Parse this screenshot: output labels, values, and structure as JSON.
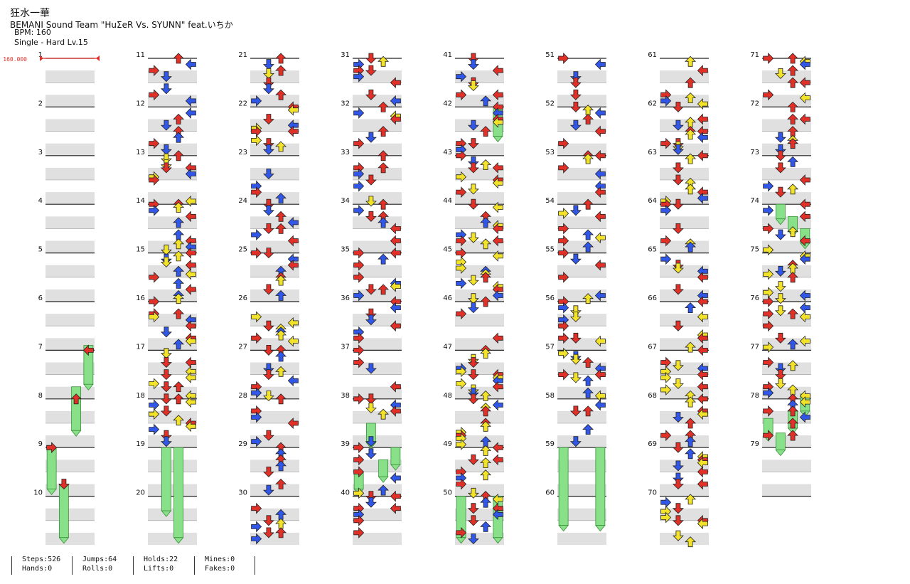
{
  "song": {
    "title": "狂水一華",
    "artist": "BEMANI Sound Team \"HuΣeR Vs. SYUNN\" feat.いちか",
    "bpm_line": "BPM: 160",
    "difficulty_line": "Single - Hard  Lv.15"
  },
  "chart": {
    "bpm_marker": "160.000",
    "measure_count": 79,
    "measures_per_column": 10,
    "colors": {
      "quarter": "#e03028",
      "eighth": "#3157e8",
      "sixteenth": "#f2e22a",
      "hold": "#88e088",
      "band": "#e0e0e0",
      "bpm": "#e0302a"
    },
    "holds": [
      {
        "lane": 3,
        "start": 6.9,
        "end": 7.7
      },
      {
        "lane": 2,
        "start": 7.75,
        "end": 8.65
      },
      {
        "lane": 0,
        "start": 9.0,
        "end": 9.85
      },
      {
        "lane": 1,
        "start": 9.75,
        "end": 10.85
      },
      {
        "lane": 1,
        "start": 19.0,
        "end": 20.3
      },
      {
        "lane": 2,
        "start": 19.0,
        "end": 20.85
      },
      {
        "lane": 1,
        "start": 38.5,
        "end": 38.9
      },
      {
        "lane": 3,
        "start": 39.0,
        "end": 39.35
      },
      {
        "lane": 2,
        "start": 39.25,
        "end": 39.6
      },
      {
        "lane": 0,
        "start": 39.5,
        "end": 39.85
      },
      {
        "lane": 3,
        "start": 42.0,
        "end": 42.6
      },
      {
        "lane": 0,
        "start": 50.0,
        "end": 50.85
      },
      {
        "lane": 3,
        "start": 50.0,
        "end": 50.85
      },
      {
        "lane": 0,
        "start": 59.0,
        "end": 60.6
      },
      {
        "lane": 3,
        "start": 59.0,
        "end": 60.6
      },
      {
        "lane": 1,
        "start": 74.0,
        "end": 74.3
      },
      {
        "lane": 2,
        "start": 74.25,
        "end": 74.55
      },
      {
        "lane": 3,
        "start": 74.5,
        "end": 74.8
      },
      {
        "lane": 3,
        "start": 77.9,
        "end": 78.25
      },
      {
        "lane": 0,
        "start": 78.4,
        "end": 78.75
      },
      {
        "lane": 2,
        "start": 78.25,
        "end": 78.6
      },
      {
        "lane": 1,
        "start": 78.7,
        "end": 79.05
      }
    ]
  },
  "stats": [
    {
      "a": "Steps:526",
      "b": "Hands:0"
    },
    {
      "a": "Jumps:64",
      "b": "Rolls:0"
    },
    {
      "a": "Holds:22",
      "b": "Lifts:0"
    },
    {
      "a": "Mines:0",
      "b": "Fakes:0"
    }
  ]
}
